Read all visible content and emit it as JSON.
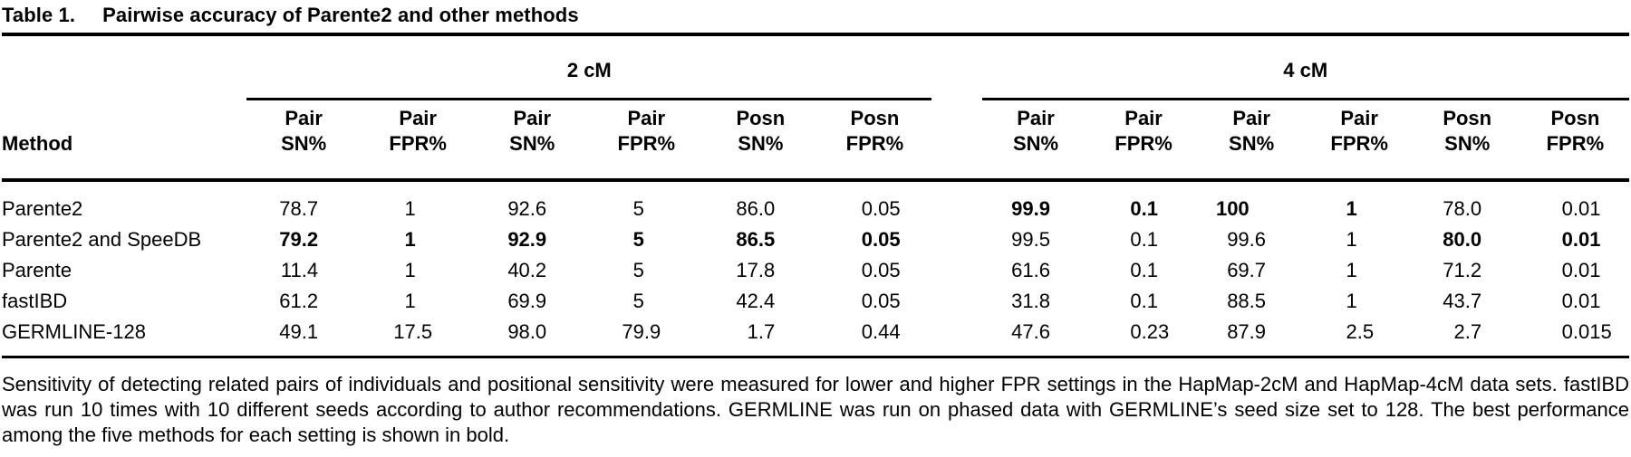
{
  "title": {
    "label": "Table 1.",
    "caption": "Pairwise accuracy of Parente2 and other methods"
  },
  "table": {
    "groups": [
      {
        "label": "2 cM"
      },
      {
        "label": "4 cM"
      }
    ],
    "method_header": "Method",
    "columns": [
      "Pair\nSN%",
      "Pair\nFPR%",
      "Pair\nSN%",
      "Pair\nFPR%",
      "Posn\nSN%",
      "Posn\nFPR%",
      "Pair\nSN%",
      "Pair\nFPR%",
      "Pair\nSN%",
      "Pair\nFPR%",
      "Posn\nSN%",
      "Posn\nFPR%"
    ],
    "rows": [
      {
        "method": "Parente2",
        "values": [
          "78.7",
          "1",
          "92.6",
          "5",
          "86.0",
          "0.05",
          "99.9",
          "0.1",
          "100",
          "1",
          "78.0",
          "0.01"
        ],
        "bold": [
          6,
          7,
          8,
          9
        ]
      },
      {
        "method": "Parente2 and SpeeDB",
        "values": [
          "79.2",
          "1",
          "92.9",
          "5",
          "86.5",
          "0.05",
          "99.5",
          "0.1",
          "99.6",
          "1",
          "80.0",
          "0.01"
        ],
        "bold": [
          0,
          1,
          2,
          3,
          4,
          5,
          10,
          11
        ]
      },
      {
        "method": "Parente",
        "values": [
          "11.4",
          "1",
          "40.2",
          "5",
          "17.8",
          "0.05",
          "61.6",
          "0.1",
          "69.7",
          "1",
          "71.2",
          "0.01"
        ],
        "bold": []
      },
      {
        "method": "fastIBD",
        "values": [
          "61.2",
          "1",
          "69.9",
          "5",
          "42.4",
          "0.05",
          "31.8",
          "0.1",
          "88.5",
          "1",
          "43.7",
          "0.01"
        ],
        "bold": []
      },
      {
        "method": "GERMLINE-128",
        "values": [
          "49.1",
          "17.5",
          "98.0",
          "79.9",
          "1.7",
          "0.44",
          "47.6",
          "0.23",
          "87.9",
          "2.5",
          "2.7",
          "0.015"
        ],
        "bold": []
      }
    ]
  },
  "footnote": "Sensitivity of detecting related pairs of individuals and positional sensitivity were measured for lower and higher FPR settings in the HapMap-2cM and HapMap-4cM data sets. fastIBD was run 10 times with 10 different seeds according to author recommendations. GERMLINE was run on phased data with GERMLINE’s seed size set to 128. The best performance among the five methods for each setting is shown in bold."
}
